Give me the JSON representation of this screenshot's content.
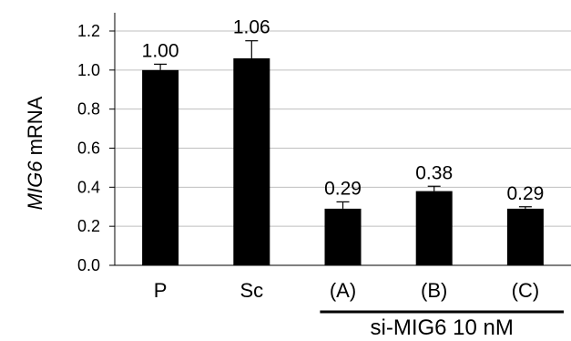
{
  "chart_data": {
    "type": "bar",
    "categories": [
      "P",
      "Sc",
      "(A)",
      "(B)",
      "(C)"
    ],
    "values": [
      1.0,
      1.06,
      0.29,
      0.38,
      0.29
    ],
    "errors": [
      0.03,
      0.09,
      0.035,
      0.025,
      0.01
    ],
    "data_labels": [
      "1.00",
      "1.06",
      "0.29",
      "0.38",
      "0.29"
    ],
    "ylabel_italic": "MIG6",
    "ylabel_rest": " mRNA",
    "ylim": [
      0,
      1.2
    ],
    "yticks": [
      "0.0",
      "0.2",
      "0.4",
      "0.6",
      "0.8",
      "1.0",
      "1.2"
    ],
    "grid": true,
    "bar_color": "#000000",
    "grid_color": "#bfbfbf",
    "group_label": "si-MIG6 10 nM",
    "group_categories": [
      "(A)",
      "(B)",
      "(C)"
    ]
  }
}
